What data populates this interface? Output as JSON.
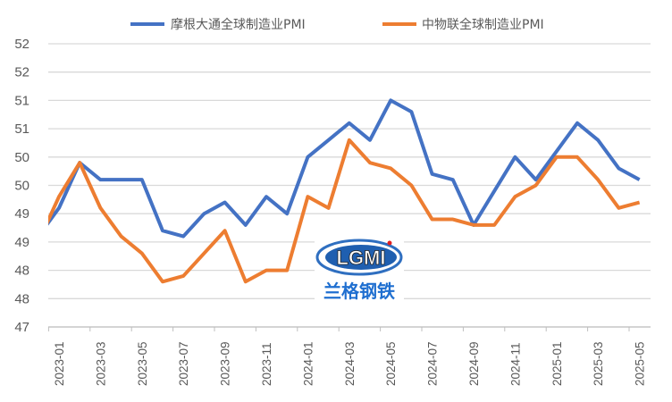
{
  "chart_data": {
    "type": "line",
    "title": "",
    "xlabel": "",
    "ylabel": "",
    "legend_position": "top",
    "grid": "horizontal",
    "ylim": [
      47,
      52
    ],
    "y_ticks": [
      47,
      47.5,
      48,
      48.5,
      49,
      49.5,
      50,
      50.5,
      51,
      51.5,
      52
    ],
    "y_tick_labels": [
      "47",
      "48",
      "48",
      "49",
      "49",
      "50",
      "50",
      "51",
      "51",
      "52",
      "52"
    ],
    "x": [
      "2022-12",
      "2023-01",
      "2023-02",
      "2023-03",
      "2023-04",
      "2023-05",
      "2023-06",
      "2023-07",
      "2023-08",
      "2023-09",
      "2023-10",
      "2023-11",
      "2023-12",
      "2024-01",
      "2024-02",
      "2024-03",
      "2024-04",
      "2024-05",
      "2024-06",
      "2024-07",
      "2024-08",
      "2024-09",
      "2024-10",
      "2024-11",
      "2024-12",
      "2025-01",
      "2025-02",
      "2025-03",
      "2025-04",
      "2025-05"
    ],
    "x_tick_labels": [
      "2023-01",
      "2023-03",
      "2023-05",
      "2023-07",
      "2023-09",
      "2023-11",
      "2024-01",
      "2024-03",
      "2024-05",
      "2024-07",
      "2024-09",
      "2024-11",
      "2025-01",
      "2025-03",
      "2025-05"
    ],
    "series": [
      {
        "name": "摩根大通全球制造业PMI",
        "color": "#4472C4",
        "values": [
          48.6,
          49.1,
          49.9,
          49.6,
          49.6,
          49.6,
          48.7,
          48.6,
          49.0,
          49.2,
          48.8,
          49.3,
          49.0,
          50.0,
          50.3,
          50.6,
          50.3,
          51.0,
          50.8,
          49.7,
          49.6,
          48.8,
          49.4,
          50.0,
          49.6,
          50.1,
          50.6,
          50.3,
          49.8,
          49.6
        ]
      },
      {
        "name": "中物联全球制造业PMI",
        "color": "#ED7D31",
        "values": [
          48.5,
          49.3,
          49.9,
          49.1,
          48.6,
          48.3,
          47.8,
          47.9,
          48.3,
          48.7,
          47.8,
          48.0,
          48.0,
          49.3,
          49.1,
          50.3,
          49.9,
          49.8,
          49.5,
          48.9,
          48.9,
          48.8,
          48.8,
          49.3,
          49.5,
          50.0,
          50.0,
          49.6,
          49.1,
          49.2
        ]
      }
    ]
  },
  "watermark": {
    "logo_text": "LGMI",
    "logo_caption": "兰格钢铁"
  }
}
